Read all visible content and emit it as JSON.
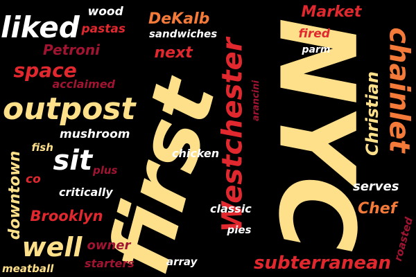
{
  "background": "#000000",
  "palette": {
    "cream": "#FFE08A",
    "orange": "#F47A3A",
    "red": "#E0282E",
    "maroon": "#A01431",
    "white": "#FFFFFF"
  },
  "words": [
    {
      "text": "NYC",
      "color": "#FFE08A",
      "rotation": 90
    },
    {
      "text": "first",
      "color": "#FFE08A",
      "rotation": -75
    },
    {
      "text": "Westchester",
      "color": "#E0282E",
      "rotation": -90
    },
    {
      "text": "chainlet",
      "color": "#F47A3A",
      "rotation": 90
    },
    {
      "text": "outpost",
      "color": "#FFE08A",
      "rotation": 0
    },
    {
      "text": "liked",
      "color": "#FFFFFF",
      "rotation": 0
    },
    {
      "text": "subterranean",
      "color": "#E0282E",
      "rotation": 0
    },
    {
      "text": "well",
      "color": "#FFE08A",
      "rotation": 0
    },
    {
      "text": "space",
      "color": "#E0282E",
      "rotation": 0
    },
    {
      "text": "sit",
      "color": "#FFFFFF",
      "rotation": 0
    },
    {
      "text": "downtown",
      "color": "#FFE08A",
      "rotation": -90
    },
    {
      "text": "Christian",
      "color": "#FFE08A",
      "rotation": -90
    },
    {
      "text": "Brooklyn",
      "color": "#E0282E",
      "rotation": 0
    },
    {
      "text": "DeKalb",
      "color": "#F47A3A",
      "rotation": 0
    },
    {
      "text": "Market",
      "color": "#E0282E",
      "rotation": 0
    },
    {
      "text": "Petroni",
      "color": "#A01431",
      "rotation": 0
    },
    {
      "text": "next",
      "color": "#E0282E",
      "rotation": 0
    },
    {
      "text": "Chef",
      "color": "#F47A3A",
      "rotation": 0
    },
    {
      "text": "serves",
      "color": "#FFFFFF",
      "rotation": 0
    },
    {
      "text": "mushroom",
      "color": "#FFFFFF",
      "rotation": 0
    },
    {
      "text": "chicken",
      "color": "#FFFFFF",
      "rotation": 0
    },
    {
      "text": "classic",
      "color": "#FFFFFF",
      "rotation": 0
    },
    {
      "text": "owner",
      "color": "#A01431",
      "rotation": 0
    },
    {
      "text": "critically",
      "color": "#FFFFFF",
      "rotation": 0
    },
    {
      "text": "acclaimed",
      "color": "#A01431",
      "rotation": 0
    },
    {
      "text": "wood",
      "color": "#FFFFFF",
      "rotation": 0
    },
    {
      "text": "pastas",
      "color": "#E0282E",
      "rotation": 0
    },
    {
      "text": "sandwiches",
      "color": "#FFFFFF",
      "rotation": 0
    },
    {
      "text": "fired",
      "color": "#E0282E",
      "rotation": 0
    },
    {
      "text": "parm",
      "color": "#FFFFFF",
      "rotation": 0
    },
    {
      "text": "arancini",
      "color": "#A01431",
      "rotation": -90
    },
    {
      "text": "fish",
      "color": "#FFE08A",
      "rotation": 0
    },
    {
      "text": "plus",
      "color": "#A01431",
      "rotation": 0
    },
    {
      "text": "co",
      "color": "#E0282E",
      "rotation": 0
    },
    {
      "text": "pies",
      "color": "#FFFFFF",
      "rotation": 0
    },
    {
      "text": "starters",
      "color": "#A01431",
      "rotation": 0
    },
    {
      "text": "array",
      "color": "#FFFFFF",
      "rotation": 0
    },
    {
      "text": "meatball",
      "color": "#FFE08A",
      "rotation": 0
    },
    {
      "text": "roasted",
      "color": "#A01431",
      "rotation": -75
    }
  ]
}
